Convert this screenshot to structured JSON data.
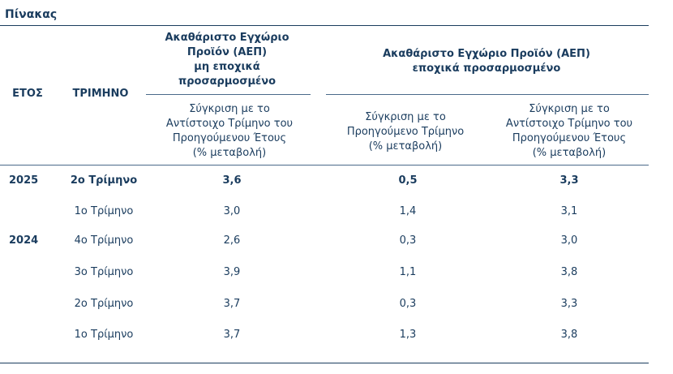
{
  "caption": "Πίνακας",
  "header": {
    "year": "ΕΤΟΣ",
    "quarter": "ΤΡΙΜΗΝΟ",
    "group1_line1": "Ακαθάριστο Εγχώριο",
    "group1_line2": "Προϊόν (ΑΕΠ)",
    "group1_line3": "μη εποχικά",
    "group1_line4": "προσαρμοσμένο",
    "group2_line1": "Ακαθάριστο Εγχώριο Προϊόν (ΑΕΠ)",
    "group2_line2": "εποχικά προσαρμοσμένο",
    "col1_line1": "Σύγκριση με το",
    "col1_line2": "Αντίστοιχο Τρίμηνο του",
    "col1_line3": "Προηγούμενου Έτους",
    "col1_line4": "(% μεταβολή)",
    "col2_line1": "Σύγκριση με το",
    "col2_line2": "Προηγούμενο Τρίμηνο",
    "col2_line3": "(% μεταβολή)",
    "col3_line1": "Σύγκριση με το",
    "col3_line2": "Αντίστοιχο Τρίμηνο του",
    "col3_line3": "Προηγούμενου Έτους",
    "col3_line4": "(% μεταβολή)"
  },
  "rows": [
    {
      "year": "2025",
      "quarter": "2ο Τρίμηνο",
      "v1": "3,6",
      "v2": "0,5",
      "v3": "3,3"
    },
    {
      "year": "",
      "quarter": "1ο Τρίμηνο",
      "v1": "3,0",
      "v2": "1,4",
      "v3": "3,1"
    },
    {
      "year": "2024",
      "quarter": "4ο Τρίμηνο",
      "v1": "2,6",
      "v2": "0,3",
      "v3": "3,0"
    },
    {
      "year": "",
      "quarter": "3ο Τρίμηνο",
      "v1": "3,9",
      "v2": "1,1",
      "v3": "3,8"
    },
    {
      "year": "",
      "quarter": "2ο Τρίμηνο",
      "v1": "3,7",
      "v2": "0,3",
      "v3": "3,3"
    },
    {
      "year": "",
      "quarter": "1ο Τρίμηνο",
      "v1": "3,7",
      "v2": "1,3",
      "v3": "3,8"
    }
  ]
}
